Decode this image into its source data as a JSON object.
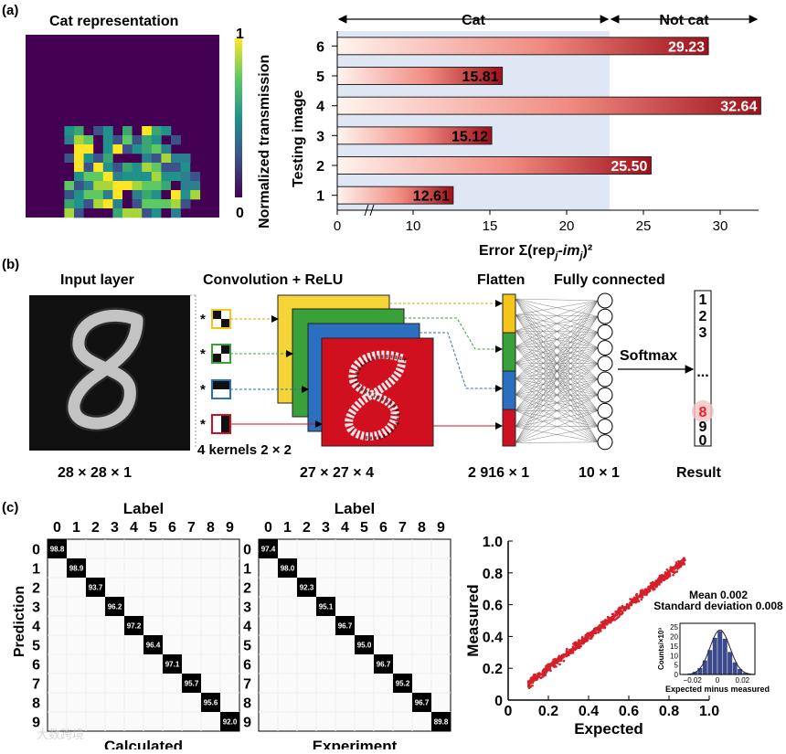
{
  "panel_a": {
    "label": "(a)",
    "heatmap": {
      "title": "Cat representation",
      "colorbar_label": "Normalized transmission",
      "colorbar_max": "1",
      "colorbar_min": "0"
    },
    "chart_data": {
      "type": "bar",
      "orientation": "horizontal",
      "categories": [
        "1",
        "2",
        "3",
        "4",
        "5",
        "6"
      ],
      "values": [
        12.61,
        25.5,
        15.12,
        32.64,
        15.81,
        29.23
      ],
      "value_labels": [
        "12.61",
        "25.50",
        "15.12",
        "32.64",
        "15.81",
        "29.23"
      ],
      "xlabel": "Error Σ(repⱼ-imⱼ)²",
      "xlabel_main": "Error Σ(rep",
      "xlabel_sub1": "j",
      "xlabel_mid": "-im",
      "xlabel_sub2": "j",
      "xlabel_end": ")²",
      "ylabel": "Testing image",
      "xticks": [
        "0",
        "10",
        "15",
        "20",
        "25",
        "30"
      ],
      "xlim": [
        0,
        33
      ],
      "threshold": 22.8,
      "region_left": "Cat",
      "region_right": "Not cat",
      "axis_break": true
    }
  },
  "panel_b": {
    "label": "(b)",
    "input_title": "Input layer",
    "conv_title": "Convolution + ReLU",
    "flatten_title": "Flatten",
    "fc_title": "Fully connected",
    "kernels_label": "4 kernels 2 × 2",
    "softmax_label": "Softmax",
    "star": "*",
    "dim_input": "28 × 28 × 1",
    "dim_conv": "27 × 27 × 4",
    "dim_flatten": "2 916 × 1",
    "dim_fc": "10 × 1",
    "result_title": "Result",
    "result_digits": [
      "1",
      "2",
      "3",
      "...",
      "8",
      "9",
      "0"
    ],
    "highlight_color": "#e8202a",
    "kernel_colors": [
      "#f5c518",
      "#3aa03a",
      "#2a6fc0",
      "#cc1122"
    ]
  },
  "panel_c": {
    "label": "(c)",
    "matrix_header": "Label",
    "row_axis_label": "Prediction",
    "digits": [
      "0",
      "1",
      "2",
      "3",
      "4",
      "5",
      "6",
      "7",
      "8",
      "9"
    ],
    "calculated": {
      "title": "Calculated",
      "diagonal": [
        "98.8",
        "98.9",
        "93.7",
        "96.2",
        "97.2",
        "96.4",
        "97.1",
        "95.7",
        "95.6",
        "92.0"
      ]
    },
    "experiment": {
      "title": "Experiment",
      "diagonal": [
        "97.4",
        "98.0",
        "92.3",
        "95.1",
        "96.7",
        "95.0",
        "96.7",
        "95.2",
        "96.7",
        "89.8"
      ]
    },
    "scatter": {
      "type": "scatter",
      "xlabel": "Expected",
      "ylabel": "Measured",
      "xticks": [
        "0",
        "0.2",
        "0.4",
        "0.6",
        "0.8",
        "1.0"
      ],
      "yticks": [
        "0",
        "0.2",
        "0.4",
        "0.6",
        "0.8",
        "1.0"
      ],
      "xlim": [
        0,
        1.0
      ],
      "ylim": [
        0,
        1.0
      ],
      "x_range": [
        0.1,
        0.88
      ],
      "color": "#d4202a"
    },
    "histogram": {
      "type": "bar",
      "stat_mean": "Mean 0.002",
      "stat_sd": "Standard deviation 0.008",
      "ylabel": "Counts/×10³",
      "xlabel": "Expected minus measured",
      "xticks": [
        "−0.02",
        "0",
        "0.02"
      ],
      "yticks": [
        "0",
        "5",
        "10",
        "15",
        "20",
        "25"
      ],
      "bin_centers": [
        -0.026,
        -0.022,
        -0.018,
        -0.014,
        -0.01,
        -0.006,
        -0.002,
        0.002,
        0.006,
        0.01,
        0.014,
        0.018,
        0.022,
        0.026
      ],
      "counts": [
        0.2,
        0.6,
        1.5,
        3.5,
        7.5,
        13,
        19.5,
        23,
        19,
        12,
        6.5,
        3,
        1,
        0.3
      ],
      "color": "#3a4a8c"
    }
  },
  "watermark": "大数跨境"
}
